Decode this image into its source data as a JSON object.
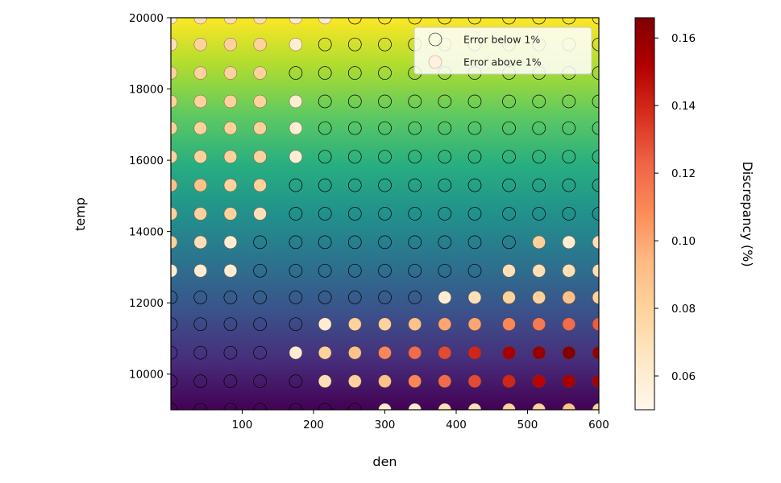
{
  "chart_data": {
    "type": "scatter",
    "xlabel": "den",
    "ylabel": "temp",
    "xlim": [
      0,
      600
    ],
    "ylim": [
      9000,
      20000
    ],
    "x_ticks": [
      100,
      200,
      300,
      400,
      500,
      600
    ],
    "y_ticks": [
      10000,
      12000,
      14000,
      16000,
      18000,
      20000
    ],
    "x_tick_labels": [
      "100",
      "200",
      "300",
      "400",
      "500",
      "600"
    ],
    "y_tick_labels": [
      "10000",
      "12000",
      "14000",
      "16000",
      "18000",
      "20000"
    ],
    "background_colormap": "viridis",
    "point_colormap": "OrRd",
    "legend": {
      "position": "top-right",
      "entries": [
        "Error below 1%",
        "Error above 1%"
      ]
    },
    "colorbar": {
      "label": "Discrepancy (%)",
      "range": [
        0.05,
        0.166
      ],
      "ticks": [
        0.06,
        0.08,
        0.1,
        0.12,
        0.14,
        0.16
      ],
      "tick_labels": [
        "0.06",
        "0.08",
        "0.10",
        "0.12",
        "0.14",
        "0.16"
      ]
    },
    "grid_x": [
      0,
      41.5,
      83.5,
      125,
      175,
      216,
      258,
      300,
      342,
      384,
      426,
      474,
      516,
      558,
      600
    ],
    "grid_y": [
      9000,
      9800,
      10600,
      11400,
      12150,
      12900,
      13700,
      14500,
      15300,
      16100,
      16900,
      17650,
      18450,
      19250,
      20000
    ],
    "discrepancy": [
      [
        null,
        null,
        null,
        null,
        null,
        null,
        null,
        0.06,
        0.06,
        0.07,
        0.07,
        0.08,
        0.08,
        0.09,
        0.08
      ],
      [
        null,
        null,
        null,
        null,
        null,
        0.07,
        0.08,
        0.09,
        0.11,
        0.12,
        0.13,
        0.14,
        0.15,
        0.155,
        0.155
      ],
      [
        null,
        null,
        null,
        null,
        0.06,
        0.08,
        0.09,
        0.11,
        0.12,
        0.13,
        0.14,
        0.155,
        0.16,
        0.165,
        0.16
      ],
      [
        null,
        null,
        null,
        null,
        null,
        0.06,
        0.08,
        0.08,
        0.09,
        0.1,
        0.1,
        0.11,
        0.115,
        0.12,
        0.125
      ],
      [
        null,
        null,
        null,
        null,
        null,
        null,
        null,
        null,
        null,
        0.06,
        0.07,
        0.08,
        0.08,
        0.09,
        0.08
      ],
      [
        0.06,
        0.06,
        0.06,
        null,
        null,
        null,
        null,
        null,
        null,
        null,
        null,
        0.07,
        0.07,
        0.07,
        0.07
      ],
      [
        0.08,
        0.07,
        0.06,
        null,
        null,
        null,
        null,
        null,
        null,
        null,
        null,
        null,
        0.08,
        0.06,
        0.07
      ],
      [
        0.08,
        0.08,
        0.08,
        0.07,
        null,
        null,
        null,
        null,
        null,
        null,
        null,
        null,
        null,
        null,
        null
      ],
      [
        0.09,
        0.09,
        0.08,
        0.08,
        null,
        null,
        null,
        null,
        null,
        null,
        null,
        null,
        null,
        null,
        null
      ],
      [
        0.08,
        0.08,
        0.08,
        0.08,
        0.06,
        null,
        null,
        null,
        null,
        null,
        null,
        null,
        null,
        null,
        null
      ],
      [
        0.08,
        0.08,
        0.08,
        0.08,
        0.06,
        null,
        null,
        null,
        null,
        null,
        null,
        null,
        null,
        null,
        null
      ],
      [
        0.08,
        0.08,
        0.08,
        0.08,
        0.06,
        null,
        null,
        null,
        null,
        null,
        null,
        null,
        null,
        null,
        null
      ],
      [
        0.08,
        0.08,
        0.08,
        0.08,
        null,
        null,
        null,
        null,
        null,
        null,
        null,
        null,
        null,
        null,
        null
      ],
      [
        0.07,
        0.08,
        0.08,
        0.08,
        0.06,
        null,
        null,
        null,
        null,
        null,
        null,
        null,
        null,
        null,
        null
      ],
      [
        0.06,
        0.07,
        0.07,
        0.07,
        0.06,
        0.06,
        null,
        null,
        null,
        null,
        null,
        null,
        null,
        null,
        null
      ]
    ]
  }
}
